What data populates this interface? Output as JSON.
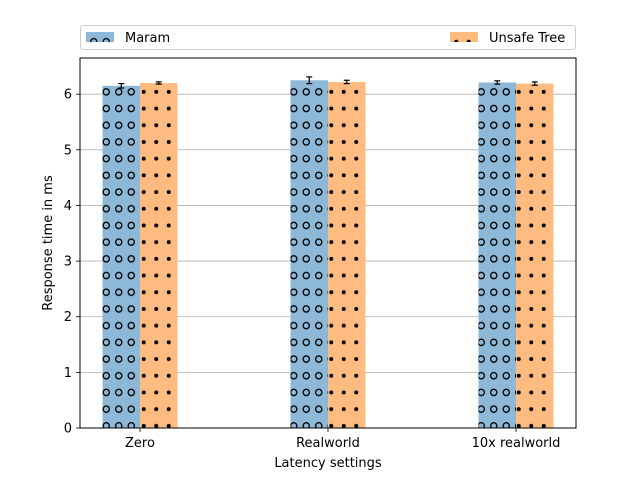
{
  "chart_data": {
    "type": "bar",
    "title": "",
    "xlabel": "Latency settings",
    "ylabel": "Response time in ms",
    "categories": [
      "Zero",
      "Realworld",
      "10x realworld"
    ],
    "ylim": [
      0,
      6.65
    ],
    "yticks": [
      0,
      1,
      2,
      3,
      4,
      5,
      6
    ],
    "grid": "horizontal",
    "legend_position": "top",
    "series": [
      {
        "name": "Maram",
        "values": [
          6.15,
          6.25,
          6.21
        ],
        "errors": [
          0.04,
          0.06,
          0.03
        ],
        "color": "#8db8d8",
        "hatch": "circles"
      },
      {
        "name": "Unsafe Tree",
        "values": [
          6.2,
          6.22,
          6.19
        ],
        "errors": [
          0.02,
          0.03,
          0.03
        ],
        "color": "#ffbb80",
        "hatch": "dots"
      }
    ]
  }
}
